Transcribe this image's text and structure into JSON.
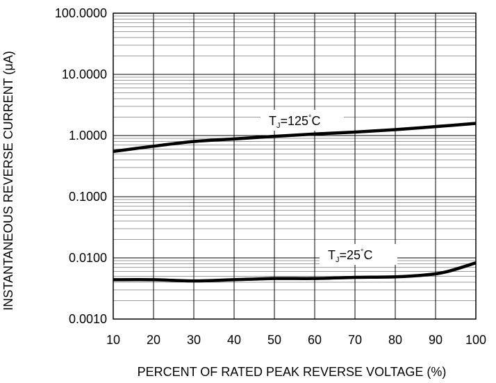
{
  "chart_data": {
    "type": "line",
    "xlabel": "PERCENT OF RATED PEAK REVERSE VOLTAGE (%)",
    "ylabel": "INSTANTANEOUS REVERSE CURRENT (μA)",
    "xlim": [
      10,
      100
    ],
    "ylim": [
      0.001,
      100
    ],
    "yscale": "log",
    "grid": true,
    "x_ticks": [
      "10",
      "20",
      "30",
      "40",
      "50",
      "60",
      "70",
      "80",
      "90",
      "100"
    ],
    "y_ticks": [
      "0.0010",
      "0.0100",
      "0.1000",
      "1.0000",
      "10.0000",
      "100.0000"
    ],
    "series": [
      {
        "annotation": {
          "prefix": "T",
          "sub": "J",
          "value": "=125",
          "deg": "°",
          "unit": "C"
        },
        "x": [
          10,
          20,
          30,
          40,
          50,
          60,
          70,
          80,
          90,
          100
        ],
        "values": [
          0.55,
          0.67,
          0.8,
          0.88,
          0.97,
          1.06,
          1.14,
          1.25,
          1.4,
          1.58
        ]
      },
      {
        "annotation": {
          "prefix": "T",
          "sub": "J",
          "value": "=25",
          "deg": "°",
          "unit": "C"
        },
        "x": [
          10,
          20,
          30,
          40,
          50,
          60,
          70,
          80,
          88,
          93,
          100
        ],
        "values": [
          0.0044,
          0.0044,
          0.0042,
          0.0044,
          0.0046,
          0.0046,
          0.0048,
          0.0049,
          0.0053,
          0.006,
          0.0083
        ]
      }
    ]
  }
}
